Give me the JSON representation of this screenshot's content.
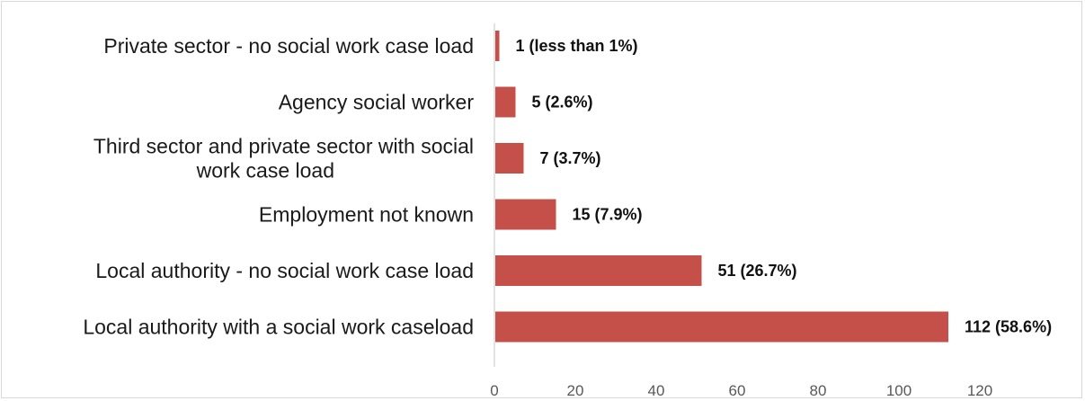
{
  "chart_data": {
    "type": "bar",
    "orientation": "horizontal",
    "title": "",
    "xlabel": "",
    "ylabel": "",
    "categories": [
      [
        "Private sector - no social work case load"
      ],
      [
        "Agency social worker"
      ],
      [
        "Third sector and private sector with social",
        "work case load"
      ],
      [
        "Employment not known"
      ],
      [
        "Local authority - no social work case load"
      ],
      [
        "Local authority with a social work caseload"
      ]
    ],
    "values": [
      1,
      5,
      7,
      15,
      51,
      112
    ],
    "data_labels": [
      "1 (less than 1%)",
      "5 (2.6%)",
      "7 (3.7%)",
      "15 (7.9%)",
      "51 (26.7%)",
      "112 (58.6%)"
    ],
    "xlim": [
      0,
      120
    ],
    "xticks": [
      0,
      20,
      40,
      60,
      80,
      100,
      120
    ],
    "grid": false,
    "legend": "none",
    "bar_color": "#c5504a",
    "axis_color": "#d9d9d9"
  }
}
